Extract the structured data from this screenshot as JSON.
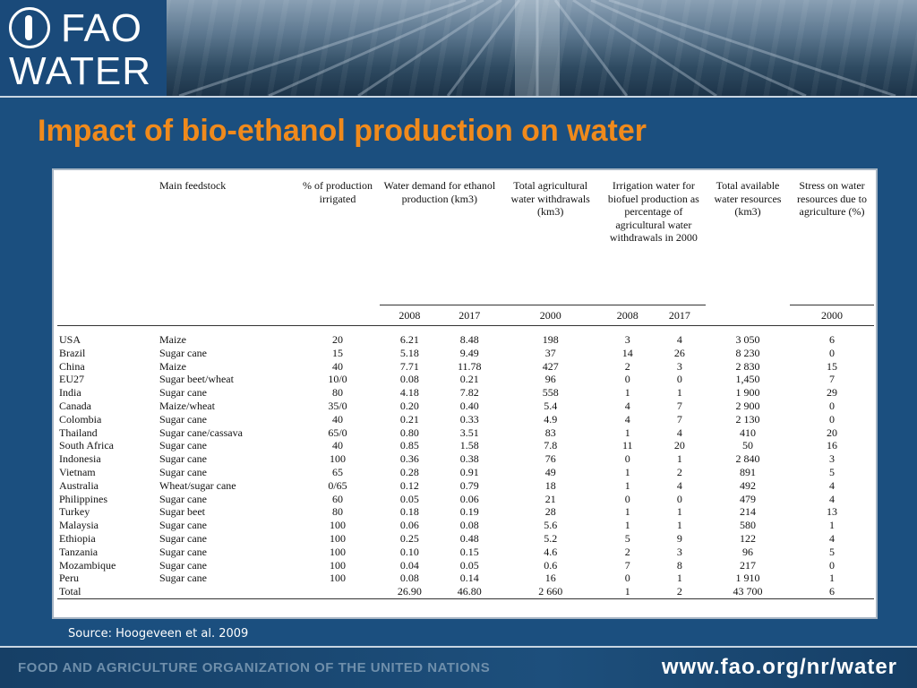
{
  "logo": {
    "line1": "FAO",
    "line2": "WATER"
  },
  "title": "Impact of bio-ethanol production on water",
  "table": {
    "headers": {
      "feedstock": "Main feedstock",
      "irrigated": "% of production irrigated",
      "water_demand": "Water demand for ethanol production (km3)",
      "withdrawals": "Total agricultural water withdrawals (km3)",
      "irrigation_pct": "Irrigation water for biofuel production as percentage of agricultural water withdrawals in 2000",
      "available": "Total available water resources (km3)",
      "stress": "Stress on water resources due to agriculture (%)"
    },
    "years": {
      "wd_2008": "2008",
      "wd_2017": "2017",
      "tw_2000": "2000",
      "ip_2008": "2008",
      "ip_2017": "2017",
      "st_2000": "2000"
    },
    "rows": [
      {
        "country": "USA",
        "feedstock": "Maize",
        "irrigated": "20",
        "wd2008": "6.21",
        "wd2017": "8.48",
        "withdrawals": "198",
        "ip2008": "3",
        "ip2017": "4",
        "available": "3 050",
        "stress": "6"
      },
      {
        "country": "Brazil",
        "feedstock": "Sugar cane",
        "irrigated": "15",
        "wd2008": "5.18",
        "wd2017": "9.49",
        "withdrawals": "37",
        "ip2008": "14",
        "ip2017": "26",
        "available": "8 230",
        "stress": "0"
      },
      {
        "country": "China",
        "feedstock": "Maize",
        "irrigated": "40",
        "wd2008": "7.71",
        "wd2017": "11.78",
        "withdrawals": "427",
        "ip2008": "2",
        "ip2017": "3",
        "available": "2 830",
        "stress": "15"
      },
      {
        "country": "EU27",
        "feedstock": "Sugar beet/wheat",
        "irrigated": "10/0",
        "wd2008": "0.08",
        "wd2017": "0.21",
        "withdrawals": "96",
        "ip2008": "0",
        "ip2017": "0",
        "available": "1,450",
        "stress": "7"
      },
      {
        "country": "India",
        "feedstock": "Sugar cane",
        "irrigated": "80",
        "wd2008": "4.18",
        "wd2017": "7.82",
        "withdrawals": "558",
        "ip2008": "1",
        "ip2017": "1",
        "available": "1 900",
        "stress": "29"
      },
      {
        "country": "Canada",
        "feedstock": "Maize/wheat",
        "irrigated": "35/0",
        "wd2008": "0.20",
        "wd2017": "0.40",
        "withdrawals": "5.4",
        "ip2008": "4",
        "ip2017": "7",
        "available": "2 900",
        "stress": "0"
      },
      {
        "country": "Colombia",
        "feedstock": "Sugar cane",
        "irrigated": "40",
        "wd2008": "0.21",
        "wd2017": "0.33",
        "withdrawals": "4.9",
        "ip2008": "4",
        "ip2017": "7",
        "available": "2 130",
        "stress": "0"
      },
      {
        "country": "Thailand",
        "feedstock": "Sugar cane/cassava",
        "irrigated": "65/0",
        "wd2008": "0.80",
        "wd2017": "3.51",
        "withdrawals": "83",
        "ip2008": "1",
        "ip2017": "4",
        "available": "410",
        "stress": "20"
      },
      {
        "country": "South Africa",
        "feedstock": "Sugar cane",
        "irrigated": "40",
        "wd2008": "0.85",
        "wd2017": "1.58",
        "withdrawals": "7.8",
        "ip2008": "11",
        "ip2017": "20",
        "available": "50",
        "stress": "16"
      },
      {
        "country": "Indonesia",
        "feedstock": "Sugar cane",
        "irrigated": "100",
        "wd2008": "0.36",
        "wd2017": "0.38",
        "withdrawals": "76",
        "ip2008": "0",
        "ip2017": "1",
        "available": "2 840",
        "stress": "3"
      },
      {
        "country": "Vietnam",
        "feedstock": "Sugar cane",
        "irrigated": "65",
        "wd2008": "0.28",
        "wd2017": "0.91",
        "withdrawals": "49",
        "ip2008": "1",
        "ip2017": "2",
        "available": "891",
        "stress": "5"
      },
      {
        "country": "Australia",
        "feedstock": "Wheat/sugar cane",
        "irrigated": "0/65",
        "wd2008": "0.12",
        "wd2017": "0.79",
        "withdrawals": "18",
        "ip2008": "1",
        "ip2017": "4",
        "available": "492",
        "stress": "4"
      },
      {
        "country": "Philippines",
        "feedstock": "Sugar cane",
        "irrigated": "60",
        "wd2008": "0.05",
        "wd2017": "0.06",
        "withdrawals": "21",
        "ip2008": "0",
        "ip2017": "0",
        "available": "479",
        "stress": "4"
      },
      {
        "country": "Turkey",
        "feedstock": "Sugar beet",
        "irrigated": "80",
        "wd2008": "0.18",
        "wd2017": "0.19",
        "withdrawals": "28",
        "ip2008": "1",
        "ip2017": "1",
        "available": "214",
        "stress": "13"
      },
      {
        "country": "Malaysia",
        "feedstock": "Sugar cane",
        "irrigated": "100",
        "wd2008": "0.06",
        "wd2017": "0.08",
        "withdrawals": "5.6",
        "ip2008": "1",
        "ip2017": "1",
        "available": "580",
        "stress": "1"
      },
      {
        "country": "Ethiopia",
        "feedstock": "Sugar cane",
        "irrigated": "100",
        "wd2008": "0.25",
        "wd2017": "0.48",
        "withdrawals": "5.2",
        "ip2008": "5",
        "ip2017": "9",
        "available": "122",
        "stress": "4"
      },
      {
        "country": "Tanzania",
        "feedstock": "Sugar cane",
        "irrigated": "100",
        "wd2008": "0.10",
        "wd2017": "0.15",
        "withdrawals": "4.6",
        "ip2008": "2",
        "ip2017": "3",
        "available": "96",
        "stress": "5"
      },
      {
        "country": "Mozambique",
        "feedstock": "Sugar cane",
        "irrigated": "100",
        "wd2008": "0.04",
        "wd2017": "0.05",
        "withdrawals": "0.6",
        "ip2008": "7",
        "ip2017": "8",
        "available": "217",
        "stress": "0"
      },
      {
        "country": "Peru",
        "feedstock": "Sugar cane",
        "irrigated": "100",
        "wd2008": "0.08",
        "wd2017": "0.14",
        "withdrawals": "16",
        "ip2008": "0",
        "ip2017": "1",
        "available": "1 910",
        "stress": "1"
      },
      {
        "country": "Total",
        "feedstock": "",
        "irrigated": "",
        "wd2008": "26.90",
        "wd2017": "46.80",
        "withdrawals": "2 660",
        "ip2008": "1",
        "ip2017": "2",
        "available": "43 700",
        "stress": "6"
      }
    ]
  },
  "source": "Source: Hoogeveen et al. 2009",
  "footer": {
    "org": "FOOD AND AGRICULTURE ORGANIZATION OF THE UNITED NATIONS",
    "url": "www.fao.org/nr/water"
  },
  "colors": {
    "background": "#1b4f7f",
    "title": "#f08a1c",
    "footer_org": "#6f8fab"
  }
}
